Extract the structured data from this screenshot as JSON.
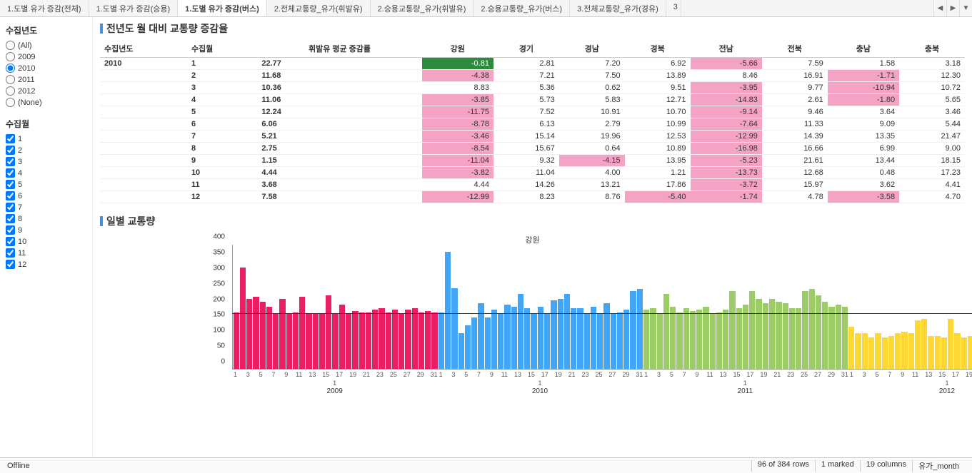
{
  "tabs": [
    {
      "label": "1.도별 유가 증감(전체)",
      "active": false
    },
    {
      "label": "1.도별 유가 증감(승용)",
      "active": false
    },
    {
      "label": "1.도별 유가 증감(버스)",
      "active": true
    },
    {
      "label": "2.전체교통량_유가(휘발유)",
      "active": false
    },
    {
      "label": "2.승용교통량_유가(휘발유)",
      "active": false
    },
    {
      "label": "2.승용교통량_유가(버스)",
      "active": false
    },
    {
      "label": "3.전체교통량_유가(경유)",
      "active": false
    }
  ],
  "tab_extra": "3",
  "sidebar": {
    "year_title": "수집년도",
    "years": [
      {
        "label": "(All)",
        "checked": false
      },
      {
        "label": "2009",
        "checked": false
      },
      {
        "label": "2010",
        "checked": true
      },
      {
        "label": "2011",
        "checked": false
      },
      {
        "label": "2012",
        "checked": false
      },
      {
        "label": "(None)",
        "checked": false
      }
    ],
    "month_title": "수집월",
    "months": [
      {
        "label": "1",
        "checked": true
      },
      {
        "label": "2",
        "checked": true
      },
      {
        "label": "3",
        "checked": true
      },
      {
        "label": "4",
        "checked": true
      },
      {
        "label": "5",
        "checked": true
      },
      {
        "label": "6",
        "checked": true
      },
      {
        "label": "7",
        "checked": true
      },
      {
        "label": "8",
        "checked": true
      },
      {
        "label": "9",
        "checked": true
      },
      {
        "label": "10",
        "checked": true
      },
      {
        "label": "11",
        "checked": true
      },
      {
        "label": "12",
        "checked": true
      }
    ]
  },
  "section1_title": "전년도 월 대비 교통량 증감율",
  "table": {
    "headers": [
      "수집년도",
      "수집월",
      "휘발유 평균 증감률",
      "강원",
      "경기",
      "경남",
      "경북",
      "전남",
      "전북",
      "충남",
      "충북"
    ],
    "year": "2010",
    "rows": [
      {
        "m": "1",
        "avg": "22.77",
        "cells": [
          {
            "v": "-0.81",
            "c": "vneg"
          },
          {
            "v": "2.81"
          },
          {
            "v": "7.20"
          },
          {
            "v": "6.92"
          },
          {
            "v": "-5.66",
            "c": "neg"
          },
          {
            "v": "7.59"
          },
          {
            "v": "1.58"
          },
          {
            "v": "3.18"
          }
        ]
      },
      {
        "m": "2",
        "avg": "11.68",
        "cells": [
          {
            "v": "-4.38",
            "c": "neg"
          },
          {
            "v": "7.21"
          },
          {
            "v": "7.50"
          },
          {
            "v": "13.89"
          },
          {
            "v": "8.46"
          },
          {
            "v": "16.91"
          },
          {
            "v": "-1.71",
            "c": "neg"
          },
          {
            "v": "12.30"
          }
        ]
      },
      {
        "m": "3",
        "avg": "10.36",
        "cells": [
          {
            "v": "8.83"
          },
          {
            "v": "5.36"
          },
          {
            "v": "0.62"
          },
          {
            "v": "9.51"
          },
          {
            "v": "-3.95",
            "c": "neg"
          },
          {
            "v": "9.77"
          },
          {
            "v": "-10.94",
            "c": "neg"
          },
          {
            "v": "10.72"
          }
        ]
      },
      {
        "m": "4",
        "avg": "11.06",
        "cells": [
          {
            "v": "-3.85",
            "c": "neg"
          },
          {
            "v": "5.73"
          },
          {
            "v": "5.83"
          },
          {
            "v": "12.71"
          },
          {
            "v": "-14.83",
            "c": "neg"
          },
          {
            "v": "2.61"
          },
          {
            "v": "-1.80",
            "c": "neg"
          },
          {
            "v": "5.65"
          }
        ]
      },
      {
        "m": "5",
        "avg": "12.24",
        "cells": [
          {
            "v": "-11.75",
            "c": "neg"
          },
          {
            "v": "7.52"
          },
          {
            "v": "10.91"
          },
          {
            "v": "10.70"
          },
          {
            "v": "-9.14",
            "c": "neg"
          },
          {
            "v": "9.46"
          },
          {
            "v": "3.64"
          },
          {
            "v": "3.46"
          }
        ]
      },
      {
        "m": "6",
        "avg": "6.06",
        "cells": [
          {
            "v": "-8.78",
            "c": "neg"
          },
          {
            "v": "6.13"
          },
          {
            "v": "2.79"
          },
          {
            "v": "10.99"
          },
          {
            "v": "-7.64",
            "c": "neg"
          },
          {
            "v": "11.33"
          },
          {
            "v": "9.09"
          },
          {
            "v": "5.44"
          }
        ]
      },
      {
        "m": "7",
        "avg": "5.21",
        "cells": [
          {
            "v": "-3.46",
            "c": "neg"
          },
          {
            "v": "15.14"
          },
          {
            "v": "19.96"
          },
          {
            "v": "12.53"
          },
          {
            "v": "-12.99",
            "c": "neg"
          },
          {
            "v": "14.39"
          },
          {
            "v": "13.35"
          },
          {
            "v": "21.47"
          }
        ]
      },
      {
        "m": "8",
        "avg": "2.75",
        "cells": [
          {
            "v": "-8.54",
            "c": "neg"
          },
          {
            "v": "15.67"
          },
          {
            "v": "0.64"
          },
          {
            "v": "10.89"
          },
          {
            "v": "-16.98",
            "c": "neg"
          },
          {
            "v": "16.66"
          },
          {
            "v": "6.99"
          },
          {
            "v": "9.00"
          }
        ]
      },
      {
        "m": "9",
        "avg": "1.15",
        "cells": [
          {
            "v": "-11.04",
            "c": "neg"
          },
          {
            "v": "9.32"
          },
          {
            "v": "-4.15",
            "c": "neg"
          },
          {
            "v": "13.95"
          },
          {
            "v": "-5.23",
            "c": "neg"
          },
          {
            "v": "21.61"
          },
          {
            "v": "13.44"
          },
          {
            "v": "18.15"
          }
        ]
      },
      {
        "m": "10",
        "avg": "4.44",
        "cells": [
          {
            "v": "-3.82",
            "c": "neg"
          },
          {
            "v": "11.04"
          },
          {
            "v": "4.00"
          },
          {
            "v": "1.21"
          },
          {
            "v": "-13.73",
            "c": "neg"
          },
          {
            "v": "12.68"
          },
          {
            "v": "0.48"
          },
          {
            "v": "17.23"
          }
        ]
      },
      {
        "m": "11",
        "avg": "3.68",
        "cells": [
          {
            "v": "4.44"
          },
          {
            "v": "14.26"
          },
          {
            "v": "13.21"
          },
          {
            "v": "17.86"
          },
          {
            "v": "-3.72",
            "c": "neg"
          },
          {
            "v": "15.97"
          },
          {
            "v": "3.62"
          },
          {
            "v": "4.41"
          }
        ]
      },
      {
        "m": "12",
        "avg": "7.58",
        "cells": [
          {
            "v": "-12.99",
            "c": "neg"
          },
          {
            "v": "8.23"
          },
          {
            "v": "8.76"
          },
          {
            "v": "-5.40",
            "c": "neg"
          },
          {
            "v": "-1.74",
            "c": "neg"
          },
          {
            "v": "4.78"
          },
          {
            "v": "-3.58",
            "c": "neg"
          },
          {
            "v": "4.70"
          }
        ]
      }
    ]
  },
  "section2_title": "일별 교통량",
  "chart": {
    "title": "강원",
    "ymax": 400,
    "ytick_step": 50,
    "refline": 180,
    "colors": {
      "2009": "#e91e63",
      "2010": "#42a5f5",
      "2011": "#9ccc65",
      "2012": "#fdd835"
    },
    "series": [
      {
        "year": "2009",
        "values": [
          180,
          325,
          225,
          230,
          215,
          200,
          175,
          225,
          175,
          180,
          230,
          175,
          175,
          175,
          235,
          175,
          205,
          175,
          185,
          180,
          180,
          190,
          195,
          180,
          190,
          175,
          190,
          195,
          180,
          185,
          180
        ]
      },
      {
        "year": "2010",
        "values": [
          180,
          375,
          258,
          115,
          140,
          165,
          210,
          165,
          190,
          175,
          205,
          200,
          240,
          195,
          175,
          200,
          175,
          220,
          225,
          240,
          195,
          195,
          175,
          200,
          175,
          210,
          175,
          180,
          190,
          250,
          255
        ]
      },
      {
        "year": "2011",
        "values": [
          190,
          195,
          175,
          240,
          200,
          180,
          195,
          185,
          190,
          200,
          175,
          180,
          190,
          250,
          195,
          205,
          250,
          225,
          210,
          225,
          215,
          210,
          195,
          195,
          250,
          255,
          235,
          215,
          200,
          205,
          200
        ]
      },
      {
        "year": "2012",
        "values": [
          135,
          115,
          115,
          100,
          115,
          100,
          105,
          115,
          120,
          115,
          155,
          160,
          105,
          105,
          100,
          160,
          115,
          100,
          105,
          100,
          105,
          105,
          100,
          100,
          100,
          105,
          130,
          125,
          110,
          100
        ]
      }
    ],
    "x_step": 2,
    "center_label": "1"
  },
  "status": {
    "left": "Offline",
    "rows": "96 of 384 rows",
    "marked": "1 marked",
    "cols": "19 columns",
    "detail": "유가_month"
  }
}
